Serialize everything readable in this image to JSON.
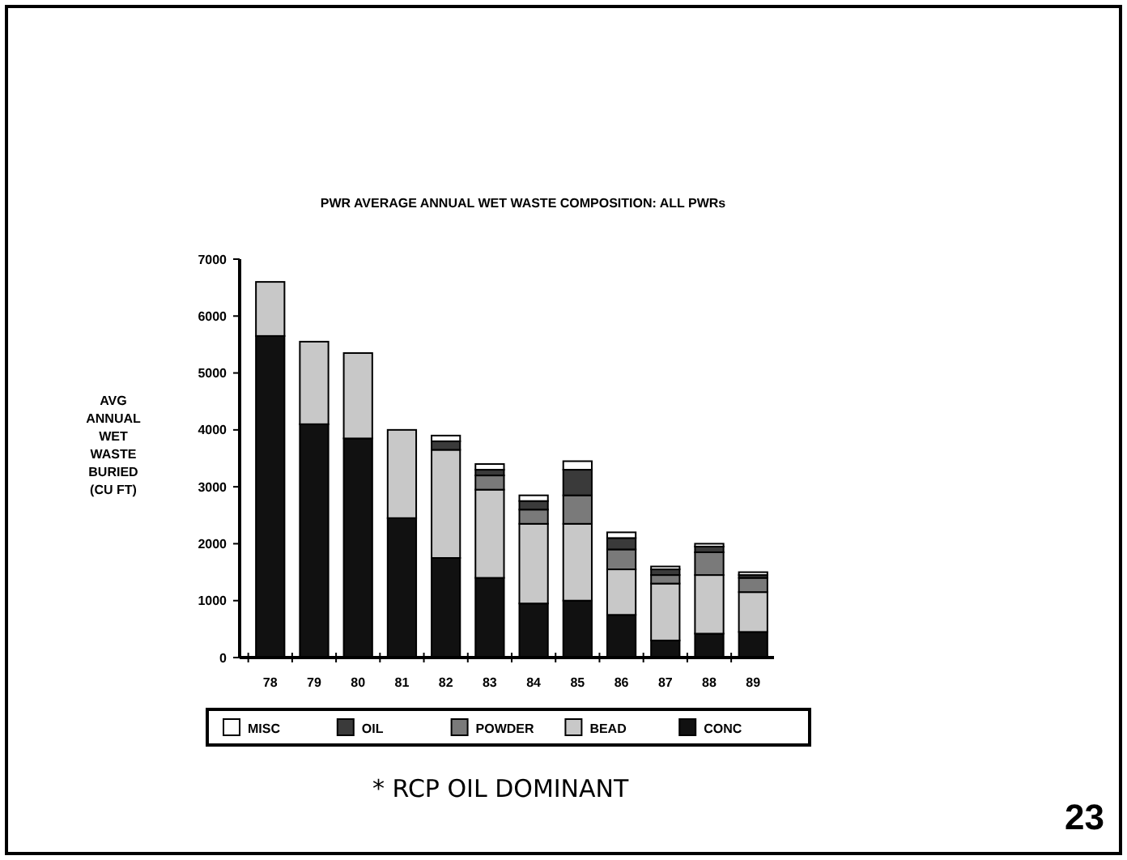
{
  "chart_data": {
    "type": "bar",
    "title": "PWR AVERAGE ANNUAL WET WASTE COMPOSITION: ALL PWRs",
    "ylabel": "AVG ANNUAL WET WASTE BURIED (CU FT)",
    "categories": [
      "78",
      "79",
      "80",
      "81",
      "82",
      "83",
      "84",
      "85",
      "86",
      "87",
      "88",
      "89"
    ],
    "stacked": true,
    "series": [
      {
        "name": "CONC",
        "color": "#111111",
        "values": [
          5650,
          4100,
          3850,
          2450,
          1750,
          1400,
          950,
          1000,
          750,
          300,
          420,
          450
        ]
      },
      {
        "name": "BEAD",
        "color": "#c8c8c8",
        "values": [
          950,
          1450,
          1500,
          1550,
          1900,
          1550,
          1400,
          1350,
          800,
          1000,
          1030,
          700
        ]
      },
      {
        "name": "POWDER",
        "color": "#7a7a7a",
        "values": [
          0,
          0,
          0,
          0,
          0,
          250,
          250,
          500,
          350,
          150,
          400,
          250
        ]
      },
      {
        "name": "OIL",
        "color": "#3a3a3a",
        "values": [
          0,
          0,
          0,
          0,
          150,
          100,
          150,
          450,
          200,
          100,
          100,
          50
        ]
      },
      {
        "name": "MISC",
        "color": "#ffffff",
        "values": [
          0,
          0,
          0,
          0,
          100,
          100,
          100,
          150,
          100,
          50,
          50,
          50
        ]
      }
    ],
    "ylim": [
      0,
      7000
    ],
    "yticks": [
      0,
      1000,
      2000,
      3000,
      4000,
      5000,
      6000,
      7000
    ],
    "grid": false,
    "legend": "bottom",
    "annotations": [
      "* RCP OIL DOMINANT",
      "23"
    ]
  }
}
